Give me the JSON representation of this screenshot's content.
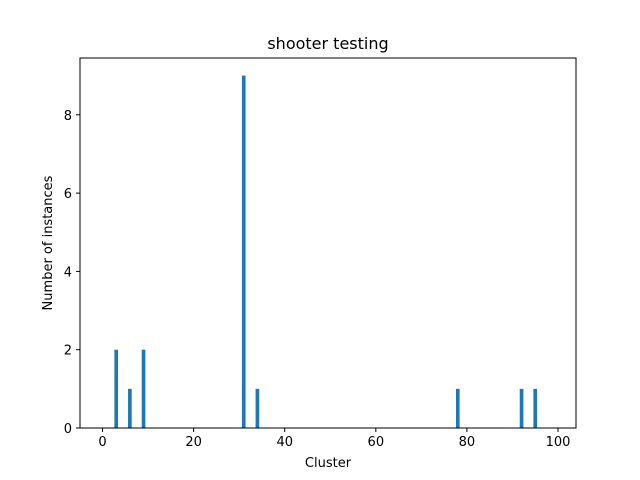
{
  "chart_data": {
    "type": "bar",
    "title": "shooter testing",
    "xlabel": "Cluster",
    "ylabel": "Number of instances",
    "x": [
      3,
      6,
      9,
      31,
      34,
      78,
      92,
      95
    ],
    "values": [
      2,
      1,
      2,
      9,
      1,
      1,
      1,
      1
    ],
    "xlim": [
      -4.95,
      103.95
    ],
    "ylim": [
      0,
      9.45
    ],
    "xticks": [
      0,
      20,
      40,
      60,
      80,
      100
    ],
    "yticks": [
      0,
      2,
      4,
      6,
      8
    ],
    "bar_width": 0.8,
    "color": "#1f77b4",
    "grid": false,
    "legend": "none"
  }
}
